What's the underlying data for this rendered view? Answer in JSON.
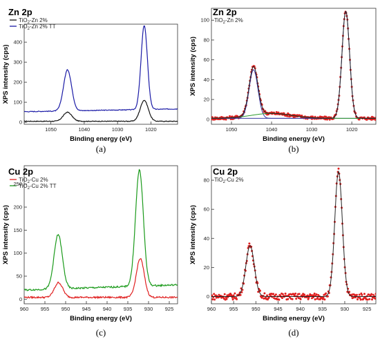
{
  "chart_data": [
    {
      "id": "a",
      "type": "line",
      "title": "Zn 2p",
      "caption": "(a)",
      "xlabel": "Binding energy (eV)",
      "ylabel": "XPS intensity (cps)",
      "xlim": [
        1058,
        1012
      ],
      "ylim": [
        -10,
        490
      ],
      "x_ticks": [
        1050,
        1040,
        1030,
        1020
      ],
      "y_ticks": [
        0,
        100,
        200,
        300,
        400
      ],
      "legend": [
        {
          "prefix": "TiO",
          "sub": "2",
          "suffix": "-Zn 2%",
          "color": "#111111"
        },
        {
          "prefix": "TiO",
          "sub": "2",
          "suffix": "-Zn 2% TT",
          "color": "#1a1aa6"
        }
      ],
      "series": [
        {
          "color": "#111111",
          "baseline": 5,
          "slope_start": 1050,
          "slope": 0.0,
          "peaks": [
            [
              1045,
              45,
              1.3
            ],
            [
              1022,
              105,
              1.2
            ]
          ]
        },
        {
          "color": "#1a1aa6",
          "baseline": 53,
          "slope_start": 1058,
          "slope": 0.3,
          "peaks": [
            [
              1045,
              205,
              1.2
            ],
            [
              1022,
              420,
              0.95
            ]
          ]
        }
      ]
    },
    {
      "id": "b",
      "type": "line",
      "title": "Zn 2p",
      "caption": "(b)",
      "xlabel": "Binding energy (eV)",
      "ylabel": "XPS intensity (cps)",
      "xlim": [
        1055,
        1014
      ],
      "ylim": [
        -5,
        112
      ],
      "x_ticks": [
        1050,
        1040,
        1030,
        1020
      ],
      "y_ticks": [
        0,
        20,
        40,
        60,
        80,
        100
      ],
      "legend": [
        {
          "prefix": "TiO",
          "sub": "2",
          "suffix": "-Zn 2%",
          "color": "#111111"
        }
      ],
      "fit_type": "zn",
      "points": {
        "color": "#e02020",
        "noise": 1.6
      },
      "series": [
        {
          "color": "#111111",
          "baseline": 1,
          "slope_start": 1050,
          "slope": 0.0,
          "peaks": [
            [
              1044.5,
              49,
              1.1
            ],
            [
              1021.5,
              108,
              0.95
            ],
            [
              1040,
              5,
              5
            ]
          ]
        }
      ]
    },
    {
      "id": "c",
      "type": "line",
      "title": "Cu 2p",
      "caption": "(c)",
      "xlabel": "Binding energy (eV)",
      "ylabel": "XPS intensity (cps)",
      "xlim": [
        960,
        923
      ],
      "ylim": [
        -10,
        290
      ],
      "x_ticks": [
        960,
        955,
        950,
        945,
        940,
        935,
        930,
        925
      ],
      "y_ticks": [
        0,
        50,
        100,
        150,
        200,
        250
      ],
      "legend": [
        {
          "prefix": "TiO",
          "sub": "2",
          "suffix": "-Cu 2%",
          "color": "#e02020"
        },
        {
          "prefix": "TiO",
          "sub": "2",
          "suffix": "-Cu 2% TT",
          "color": "#1a9a1a"
        }
      ],
      "series": [
        {
          "color": "#e02020",
          "baseline": 4,
          "slope_start": 960,
          "slope": 0.0,
          "peaks": [
            [
              951.7,
              32,
              1.0
            ],
            [
              932,
              84,
              0.95
            ]
          ]
        },
        {
          "color": "#1a9a1a",
          "baseline": 20,
          "slope_start": 960,
          "slope": 0.3,
          "peaks": [
            [
              951.8,
              118,
              1.0
            ],
            [
              932.2,
              252,
              0.95
            ]
          ]
        }
      ]
    },
    {
      "id": "d",
      "type": "scatter",
      "title": "Cu 2p",
      "caption": "(d)",
      "xlabel": "Binding energy (eV)",
      "ylabel": "XPS intensity (cps)",
      "xlim": [
        960,
        923
      ],
      "ylim": [
        -5,
        90
      ],
      "x_ticks": [
        960,
        955,
        950,
        945,
        940,
        935,
        930,
        925
      ],
      "y_ticks": [
        0,
        20,
        40,
        60,
        80
      ],
      "legend": [
        {
          "prefix": "TiO",
          "sub": "2",
          "suffix": "-Cu 2%",
          "color": "#111111"
        }
      ],
      "fit_type": "cu",
      "points": {
        "color": "#e02020",
        "noise": 2.2
      },
      "series": [
        {
          "color": "#111111",
          "baseline": 0,
          "slope_start": 960,
          "slope": 0.0,
          "peaks": [
            [
              951.3,
              35,
              0.95
            ],
            [
              931.4,
              86,
              0.85
            ]
          ]
        }
      ]
    }
  ]
}
